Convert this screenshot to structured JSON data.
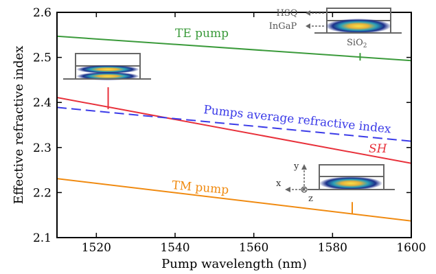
{
  "chart_data": {
    "type": "line",
    "xlabel": "Pump wavelength (nm)",
    "ylabel": "Effective refractive index",
    "xlim": [
      1510,
      1600
    ],
    "ylim": [
      2.1,
      2.6
    ],
    "xticks": [
      "1520",
      "1540",
      "1560",
      "1580",
      "1600"
    ],
    "yticks": [
      "2.1",
      "2.2",
      "2.3",
      "2.4",
      "2.5",
      "2.6"
    ],
    "grid": false,
    "series": [
      {
        "name": "TE pump",
        "color": "#3a9a3a",
        "dash": "solid",
        "x": [
          1510,
          1600
        ],
        "y": [
          2.547,
          2.493
        ]
      },
      {
        "name": "SH",
        "color": "#e8303a",
        "dash": "solid",
        "x": [
          1510,
          1600
        ],
        "y": [
          2.411,
          2.265
        ]
      },
      {
        "name": "Pumps average refractive index",
        "color": "#3a3ae8",
        "dash": "dashed",
        "x": [
          1510,
          1600
        ],
        "y": [
          2.389,
          2.314
        ]
      },
      {
        "name": "TM pump",
        "color": "#f08a10",
        "dash": "solid",
        "x": [
          1510,
          1600
        ],
        "y": [
          2.231,
          2.137
        ]
      }
    ],
    "annotations": {
      "hsq": "HSQ",
      "ingap": "InGaP",
      "sio2_base": "SiO",
      "sio2_sub": "2",
      "axis_x": "x",
      "axis_y": "y",
      "axis_z": "z"
    },
    "inset_markers": [
      {
        "mode": "TE",
        "x": 1587,
        "y": 2.493
      },
      {
        "mode": "SH",
        "x": 1523,
        "y": 2.385
      },
      {
        "mode": "TM",
        "x": 1585,
        "y": 2.153
      }
    ]
  }
}
